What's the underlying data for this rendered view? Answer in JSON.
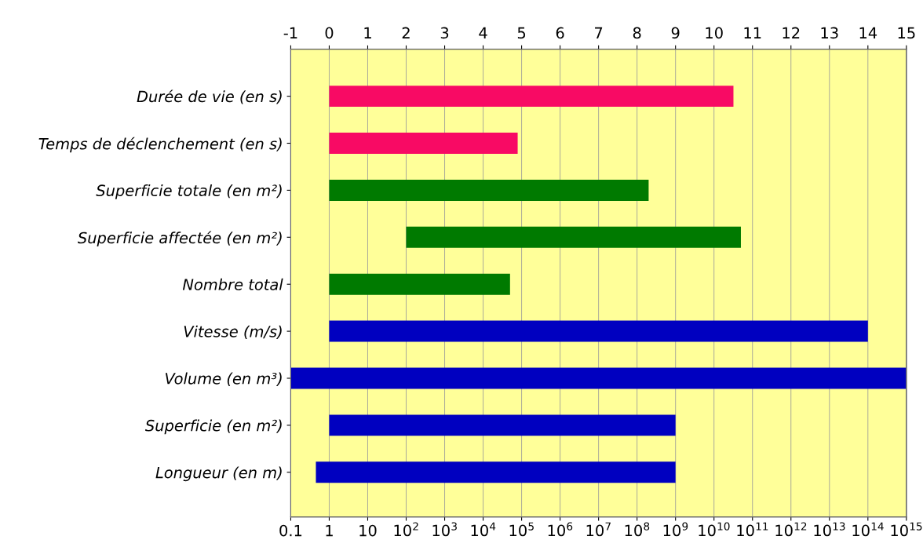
{
  "chart_data": {
    "type": "bar",
    "orientation": "horizontal",
    "categories": [
      "Durée de vie (en s)",
      "Temps de déclenchement (en s)",
      "Superficie totale (en m²)",
      "Superficie affectée (en m²)",
      "Nombre total",
      "Vitesse (m/s)",
      "Volume (en m³)",
      "Superficie (en m²)",
      "Longueur (en m)"
    ],
    "base": [
      1,
      1,
      1,
      100,
      1,
      1,
      0.1,
      1,
      0.45
    ],
    "values": [
      32000000000.0,
      79000.0,
      200000000.0,
      50000000000.0,
      50000.0,
      100000000000000.0,
      1000000000000000.0,
      1000000000.0,
      1000000000.0
    ],
    "colors": [
      "#f80a64",
      "#f80a64",
      "#007a00",
      "#007a00",
      "#007a00",
      "#0000c0",
      "#0000c0",
      "#0000c0",
      "#0000c0"
    ],
    "log": "x",
    "xlim": [
      0.1,
      1000000000000000.0
    ],
    "xticks": [
      0.1,
      1,
      10,
      {
        "value": 100.0,
        "label": "10$^{2}$"
      },
      {
        "value": 1000.0,
        "label": "10$^{3}$"
      },
      {
        "value": 10000.0,
        "label": "10$^{4}$"
      },
      {
        "value": 100000.0,
        "label": "10$^{5}$"
      },
      {
        "value": 1000000.0,
        "label": "10$^{6}$"
      },
      {
        "value": 10000000.0,
        "label": "10$^{7}$"
      },
      {
        "value": 100000000.0,
        "label": "10$^{8}$"
      },
      {
        "value": 1000000000.0,
        "label": "10$^{9}$"
      },
      {
        "value": 10000000000.0,
        "label": "10$^{10}$"
      },
      {
        "value": 100000000000.0,
        "label": "10$^{11}$"
      },
      {
        "value": 1000000000000.0,
        "label": "10$^{12}$"
      },
      {
        "value": 10000000000000.0,
        "label": "10$^{13}$"
      },
      {
        "value": 100000000000000.0,
        "label": "10$^{14}$"
      },
      {
        "value": 1000000000000000.0,
        "label": "10$^{15}$"
      }
    ],
    "x2lim": [
      -1,
      15
    ],
    "x2ticks": [
      -1,
      0,
      1,
      2,
      3,
      4,
      5,
      6,
      7,
      8,
      9,
      10,
      11,
      12,
      13,
      14,
      15
    ],
    "grid": "x"
  }
}
